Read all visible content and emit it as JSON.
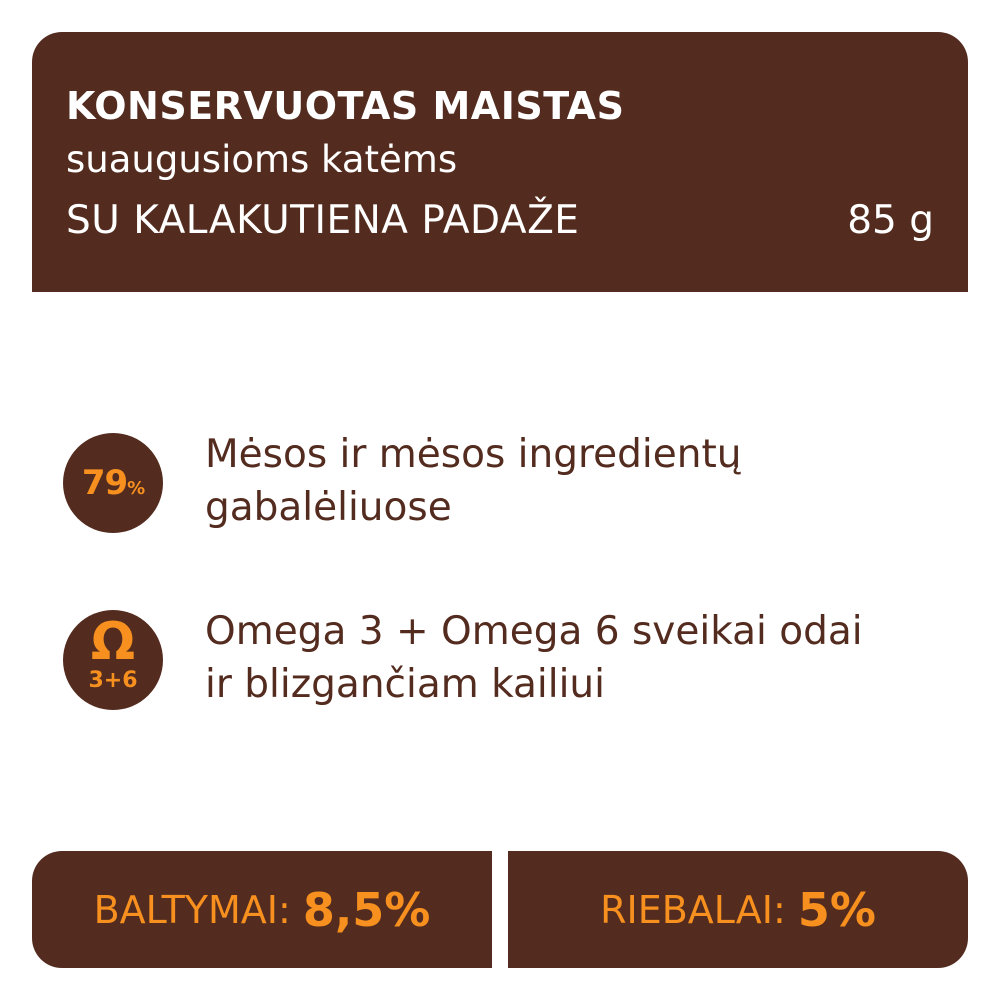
{
  "header": {
    "title": "KONSERVUOTAS MAISTAS",
    "subtitle": "suaugusioms katėms",
    "flavor": "SU KALAKUTIENA PADAŽE",
    "weight": "85 g"
  },
  "features": [
    {
      "badge_value": "79",
      "badge_unit": "%",
      "icon": "percent-badge",
      "line1": "Mėsos ir mėsos ingredientų",
      "line2": "gabalėliuose"
    },
    {
      "badge_symbol": "Ω",
      "badge_value": "3+6",
      "icon": "omega-icon",
      "line1": "Omega 3 + Omega 6 sveikai odai",
      "line2": "ir blizgančiam kailiui"
    }
  ],
  "nutrition": [
    {
      "label": "BALTYMAI:",
      "value": "8,5%"
    },
    {
      "label": "RIEBALAI:",
      "value": "5%"
    }
  ],
  "colors": {
    "brown": "#532c1f",
    "orange": "#f7901e",
    "white": "#ffffff"
  }
}
